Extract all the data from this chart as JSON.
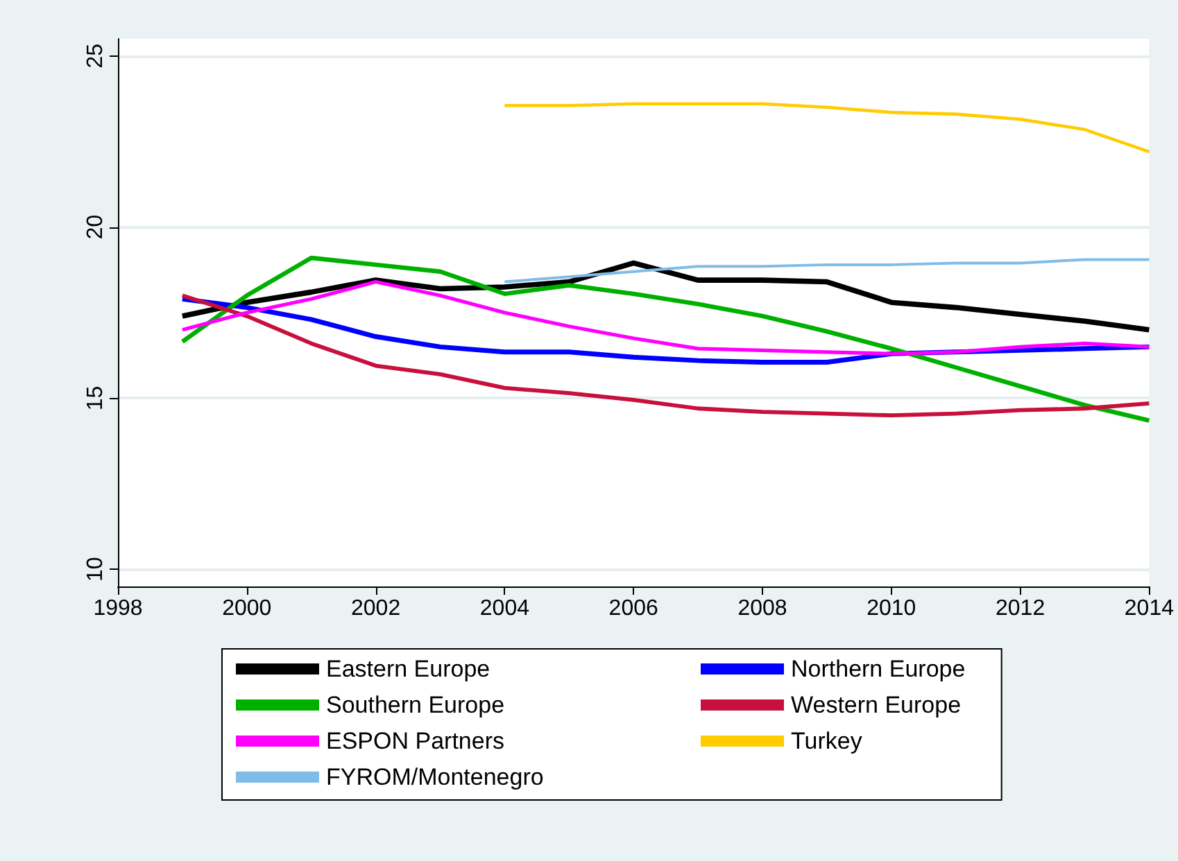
{
  "chart_data": {
    "type": "line",
    "x": [
      1999,
      2000,
      2001,
      2002,
      2003,
      2004,
      2005,
      2006,
      2007,
      2008,
      2009,
      2010,
      2011,
      2012,
      2013,
      2014
    ],
    "series": [
      {
        "name": "Eastern Europe",
        "color": "#000000",
        "values": [
          17.4,
          17.8,
          18.1,
          18.45,
          18.2,
          18.25,
          18.4,
          18.95,
          18.45,
          18.45,
          18.4,
          17.8,
          17.65,
          17.45,
          17.25,
          17.0
        ]
      },
      {
        "name": "Northern Europe",
        "color": "#0000ff",
        "values": [
          17.9,
          17.65,
          17.3,
          16.8,
          16.5,
          16.35,
          16.35,
          16.2,
          16.1,
          16.05,
          16.05,
          16.3,
          16.35,
          16.4,
          16.45,
          16.5
        ]
      },
      {
        "name": "Southern Europe",
        "color": "#00b000",
        "values": [
          16.65,
          18.0,
          19.1,
          18.9,
          18.7,
          18.05,
          18.3,
          18.05,
          17.75,
          17.4,
          16.95,
          16.45,
          15.9,
          15.35,
          14.8,
          14.35
        ]
      },
      {
        "name": "Western Europe",
        "color": "#c8103c",
        "values": [
          18.0,
          17.4,
          16.6,
          15.95,
          15.7,
          15.3,
          15.15,
          14.95,
          14.7,
          14.6,
          14.55,
          14.5,
          14.55,
          14.65,
          14.7,
          14.85
        ]
      },
      {
        "name": "ESPON Partners",
        "color": "#ff00ff",
        "values": [
          17.0,
          17.5,
          17.9,
          18.4,
          18.0,
          17.5,
          17.1,
          16.75,
          16.45,
          16.4,
          16.35,
          16.3,
          16.35,
          16.5,
          16.6,
          16.5
        ]
      },
      {
        "name": "Turkey",
        "color": "#ffcc00",
        "values": [
          null,
          null,
          null,
          null,
          null,
          23.55,
          23.55,
          23.6,
          23.6,
          23.6,
          23.5,
          23.35,
          23.3,
          23.15,
          22.85,
          22.2
        ]
      },
      {
        "name": "FYROM/Montenegro",
        "color": "#80bce8",
        "values": [
          null,
          null,
          null,
          null,
          null,
          18.4,
          18.55,
          18.7,
          18.85,
          18.85,
          18.9,
          18.9,
          18.95,
          18.95,
          19.05,
          19.05
        ]
      }
    ],
    "xlim": [
      1998,
      2014
    ],
    "xticks": [
      1998,
      2000,
      2002,
      2004,
      2006,
      2008,
      2010,
      2012,
      2014
    ],
    "ylim": [
      9.5,
      25.5
    ],
    "yticks": [
      10,
      15,
      20,
      25
    ],
    "grid": "y",
    "legend": "bottom",
    "marker": "none",
    "line_style": "solid"
  }
}
